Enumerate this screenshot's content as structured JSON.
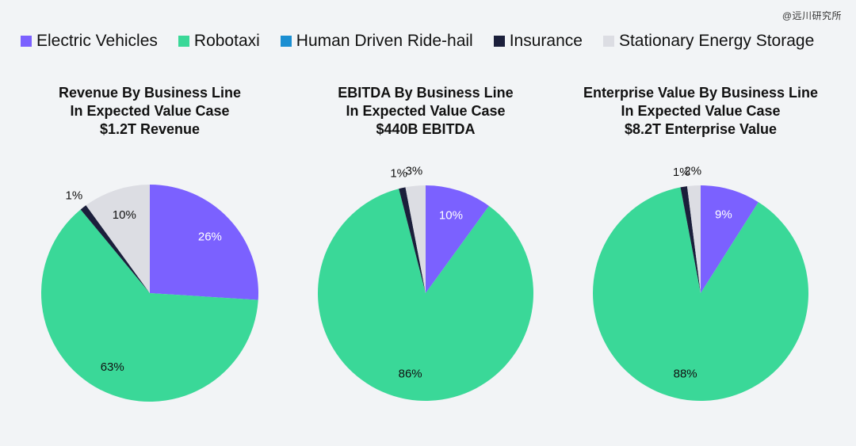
{
  "watermark": "@远川研究所",
  "legend": [
    {
      "label": "Electric Vehicles",
      "color": "#7b61ff"
    },
    {
      "label": "Robotaxi",
      "color": "#3ad898"
    },
    {
      "label": "Human Driven Ride-hail",
      "color": "#1b8fd2"
    },
    {
      "label": "Insurance",
      "color": "#1b1f3b"
    },
    {
      "label": "Stationary Energy Storage",
      "color": "#dcdde3"
    }
  ],
  "chart_data": [
    {
      "type": "pie",
      "title": [
        "Revenue By Business Line",
        "In Expected Value Case",
        "$1.2T Revenue"
      ],
      "categories": [
        "Electric Vehicles",
        "Robotaxi",
        "Human Driven Ride-hail",
        "Insurance",
        "Stationary Energy Storage"
      ],
      "values": [
        26,
        63,
        0,
        1,
        10
      ],
      "labels": [
        "26%",
        "63%",
        "",
        "1%",
        "10%"
      ]
    },
    {
      "type": "pie",
      "title": [
        "EBITDA By Business Line",
        "In Expected Value Case",
        "$440B EBITDA"
      ],
      "categories": [
        "Electric Vehicles",
        "Robotaxi",
        "Human Driven Ride-hail",
        "Insurance",
        "Stationary Energy Storage"
      ],
      "values": [
        10,
        86,
        0,
        1,
        3
      ],
      "labels": [
        "10%",
        "86%",
        "",
        "1%",
        "3%"
      ]
    },
    {
      "type": "pie",
      "title": [
        "Enterprise Value By Business Line",
        "In Expected Value Case",
        "$8.2T Enterprise Value"
      ],
      "categories": [
        "Electric Vehicles",
        "Robotaxi",
        "Human Driven Ride-hail",
        "Insurance",
        "Stationary Energy Storage"
      ],
      "values": [
        9,
        88,
        0,
        1,
        2
      ],
      "labels": [
        "9%",
        "88%",
        "",
        "1%",
        "2%"
      ]
    }
  ]
}
